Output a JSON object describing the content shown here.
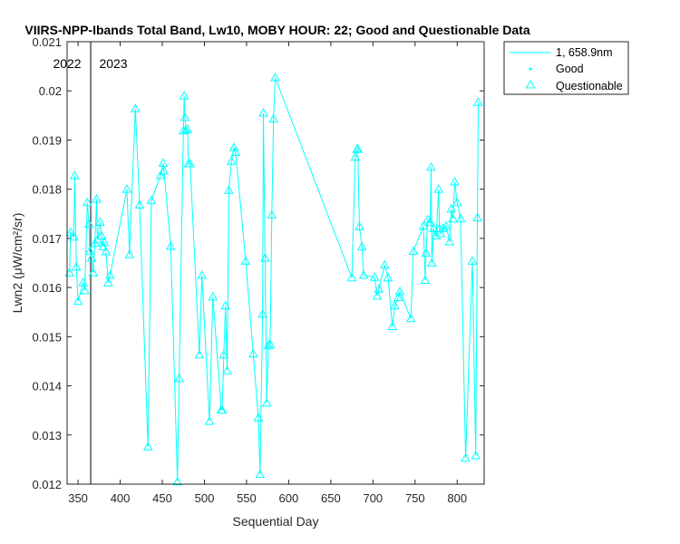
{
  "chart_data": {
    "type": "line",
    "title": "VIIRS-NPP-Ibands Total Band, Lw10, MOBY HOUR: 22;  Good and Questionable Data",
    "xlabel": "Sequential Day",
    "ylabel": "Lwn2 (μW/cm²/sr)",
    "xlim": [
      337,
      832
    ],
    "ylim": [
      0.012,
      0.021
    ],
    "xticks": [
      350,
      400,
      450,
      500,
      550,
      600,
      650,
      700,
      750,
      800
    ],
    "yticks": [
      0.012,
      0.013,
      0.014,
      0.015,
      0.016,
      0.017,
      0.018,
      0.019,
      0.02,
      0.021
    ],
    "ytick_labels": [
      "0.012",
      "0.013",
      "0.014",
      "0.015",
      "0.016",
      "0.017",
      "0.018",
      "0.019",
      "0.02",
      "0.021"
    ],
    "year_marker": {
      "x": 365,
      "left_label": "2022",
      "right_label": "2023"
    },
    "legend": {
      "placement": "outside-top-right",
      "entries": [
        "1, 658.9nm",
        "Good",
        "Questionable"
      ]
    },
    "series_color": "#00FFFF",
    "series": [
      {
        "name": "1, 658.9nm",
        "x": [
          340,
          341,
          345,
          346,
          348,
          350,
          356,
          358,
          361,
          363,
          364,
          366,
          368,
          370,
          372,
          373,
          376,
          378,
          380,
          381,
          383,
          386,
          388,
          408,
          411,
          418,
          423,
          433,
          437,
          448,
          451,
          452,
          460,
          468,
          470,
          475,
          476,
          477,
          478,
          480,
          481,
          483,
          494,
          497,
          506,
          510,
          520,
          521,
          523,
          525,
          527,
          529,
          532,
          535,
          537,
          549,
          558,
          564,
          566,
          569,
          570,
          572,
          574,
          576,
          578,
          580,
          582,
          584,
          675,
          679,
          681,
          682,
          684,
          687,
          689,
          702,
          705,
          707,
          714,
          718,
          723,
          726,
          730,
          732,
          745,
          748,
          760,
          762,
          763,
          765,
          768,
          769,
          770,
          772,
          775,
          778,
          779,
          780,
          783,
          787,
          791,
          793,
          795,
          797,
          800,
          804,
          810,
          818,
          822,
          824,
          825
        ],
        "y": [
          0.0163,
          0.01712,
          0.01703,
          0.01828,
          0.01642,
          0.01572,
          0.0161,
          0.01594,
          0.01773,
          0.01729,
          0.01674,
          0.0166,
          0.0163,
          0.0169,
          0.0178,
          0.01697,
          0.01733,
          0.01705,
          0.01683,
          0.01692,
          0.01673,
          0.0161,
          0.01625,
          0.018,
          0.01667,
          0.01964,
          0.01768,
          0.01276,
          0.01777,
          0.01828,
          0.01853,
          0.01837,
          0.01684,
          0.01205,
          0.01415,
          0.01919,
          0.0199,
          0.01946,
          0.0192,
          0.01922,
          0.01852,
          0.01852,
          0.01463,
          0.01625,
          0.01328,
          0.01581,
          0.01351,
          0.01351,
          0.01463,
          0.01563,
          0.01431,
          0.01798,
          0.01857,
          0.01885,
          0.01875,
          0.01654,
          0.01465,
          0.01335,
          0.0122,
          0.01546,
          0.01955,
          0.0166,
          0.01365,
          0.01482,
          0.01485,
          0.01748,
          0.01943,
          0.02027,
          0.0162,
          0.01865,
          0.01881,
          0.01882,
          0.01724,
          0.01683,
          0.01625,
          0.01621,
          0.01583,
          0.01597,
          0.01646,
          0.0162,
          0.01521,
          0.01563,
          0.0158,
          0.01592,
          0.01537,
          0.01674,
          0.01725,
          0.01615,
          0.0167,
          0.01738,
          0.01733,
          0.01845,
          0.0165,
          0.0172,
          0.01705,
          0.018,
          0.0172,
          0.0171,
          0.0172,
          0.01725,
          0.01693,
          0.0176,
          0.0174,
          0.01815,
          0.01773,
          0.0174,
          0.01253,
          0.01654,
          0.01258,
          0.01742,
          0.01977
        ]
      }
    ]
  }
}
